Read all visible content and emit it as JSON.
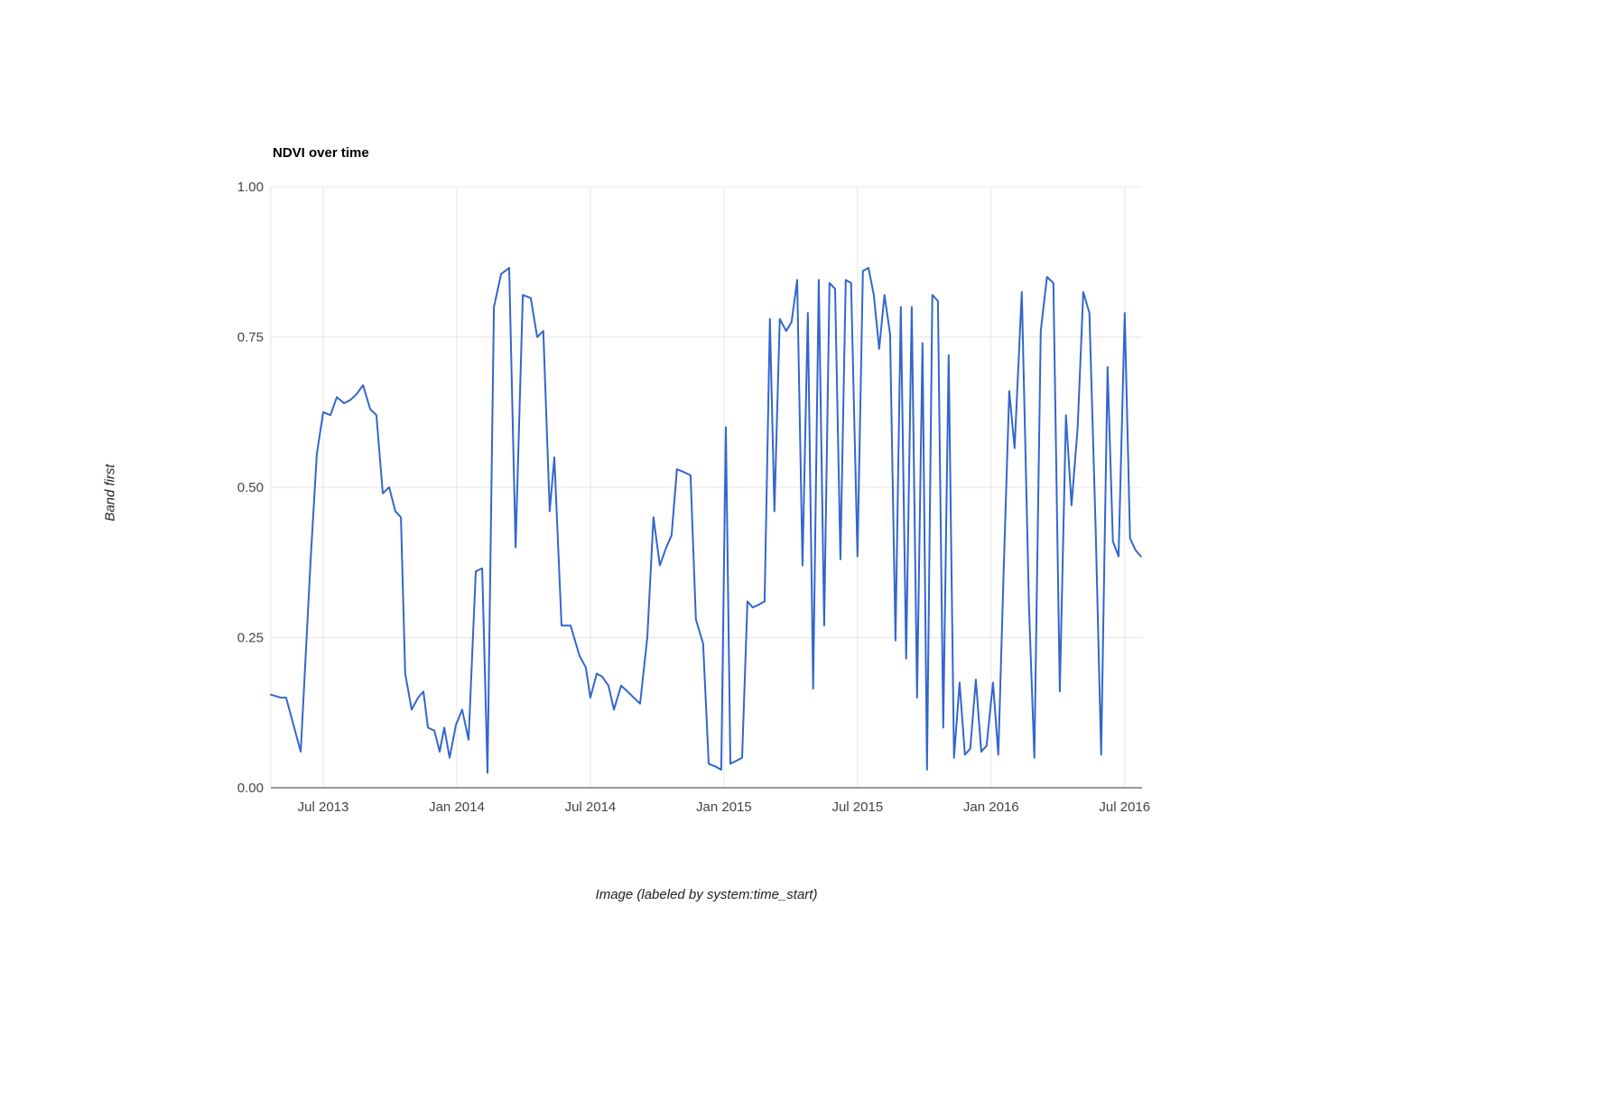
{
  "chart_data": {
    "type": "line",
    "title": "NDVI over time",
    "xlabel": "Image (labeled by system:time_start)",
    "ylabel": "Band first",
    "legend": "none",
    "grid": true,
    "line_color": "#3366cc",
    "grid_color": "#e6e6e6",
    "baseline_color": "#333333",
    "x_range": [
      2013.304,
      2016.565
    ],
    "y_range": [
      0,
      1
    ],
    "x_ticks": [
      {
        "v": 2013.5,
        "label": "Jul 2013"
      },
      {
        "v": 2014.0,
        "label": "Jan 2014"
      },
      {
        "v": 2014.5,
        "label": "Jul 2014"
      },
      {
        "v": 2015.0,
        "label": "Jan 2015"
      },
      {
        "v": 2015.5,
        "label": "Jul 2015"
      },
      {
        "v": 2016.0,
        "label": "Jan 2016"
      },
      {
        "v": 2016.5,
        "label": "Jul 2016"
      }
    ],
    "y_ticks": [
      {
        "v": 0.0,
        "label": "0.00"
      },
      {
        "v": 0.25,
        "label": "0.25"
      },
      {
        "v": 0.5,
        "label": "0.50"
      },
      {
        "v": 0.75,
        "label": "0.75"
      },
      {
        "v": 1.0,
        "label": "1.00"
      }
    ],
    "series": [
      {
        "name": "NDVI",
        "x": [
          2013.304,
          2013.341,
          2013.361,
          2013.416,
          2013.453,
          2013.476,
          2013.5,
          2013.527,
          2013.551,
          2013.578,
          2013.601,
          2013.625,
          2013.649,
          2013.676,
          2013.699,
          2013.723,
          2013.747,
          2013.77,
          2013.791,
          2013.807,
          2013.831,
          2013.855,
          2013.875,
          2013.892,
          2013.916,
          2013.936,
          2013.953,
          2013.973,
          2013.997,
          2014.02,
          2014.044,
          2014.071,
          2014.095,
          2014.115,
          2014.139,
          2014.166,
          2014.196,
          2014.22,
          2014.247,
          2014.277,
          2014.301,
          2014.324,
          2014.348,
          2014.365,
          2014.392,
          2014.426,
          2014.459,
          2014.483,
          2014.5,
          2014.524,
          2014.544,
          2014.568,
          2014.588,
          2014.615,
          2014.639,
          2014.662,
          2014.686,
          2014.713,
          2014.736,
          2014.76,
          2014.784,
          2014.804,
          2014.824,
          2014.851,
          2014.875,
          2014.895,
          2014.922,
          2014.943,
          2014.97,
          2014.99,
          2015.007,
          2015.024,
          2015.047,
          2015.068,
          2015.088,
          2015.108,
          2015.132,
          2015.152,
          2015.172,
          2015.189,
          2015.209,
          2015.233,
          2015.253,
          2015.274,
          2015.294,
          2015.314,
          2015.334,
          2015.355,
          2015.375,
          2015.395,
          2015.416,
          2015.436,
          2015.456,
          2015.476,
          2015.5,
          2015.52,
          2015.541,
          2015.561,
          2015.581,
          2015.601,
          2015.622,
          2015.642,
          2015.662,
          2015.682,
          2015.703,
          2015.723,
          2015.743,
          2015.76,
          2015.78,
          2015.801,
          2015.821,
          2015.841,
          2015.861,
          2015.882,
          2015.902,
          2015.922,
          2015.943,
          2015.963,
          2015.983,
          2016.007,
          2016.027,
          2016.047,
          2016.068,
          2016.088,
          2016.115,
          2016.142,
          2016.162,
          2016.186,
          2016.209,
          2016.233,
          2016.257,
          2016.28,
          2016.301,
          2016.324,
          2016.345,
          2016.368,
          2016.392,
          2016.412,
          2016.436,
          2016.456,
          2016.477,
          2016.5,
          2016.52,
          2016.541,
          2016.561
        ],
        "y": [
          0.155,
          0.15,
          0.15,
          0.06,
          0.38,
          0.555,
          0.625,
          0.62,
          0.65,
          0.64,
          0.645,
          0.655,
          0.67,
          0.63,
          0.62,
          0.49,
          0.5,
          0.46,
          0.45,
          0.19,
          0.13,
          0.15,
          0.16,
          0.1,
          0.095,
          0.06,
          0.1,
          0.05,
          0.105,
          0.13,
          0.08,
          0.36,
          0.365,
          0.025,
          0.8,
          0.855,
          0.865,
          0.4,
          0.82,
          0.815,
          0.75,
          0.76,
          0.46,
          0.55,
          0.27,
          0.27,
          0.22,
          0.2,
          0.15,
          0.19,
          0.185,
          0.17,
          0.13,
          0.17,
          0.16,
          0.15,
          0.14,
          0.25,
          0.45,
          0.37,
          0.4,
          0.42,
          0.53,
          0.525,
          0.52,
          0.28,
          0.24,
          0.04,
          0.035,
          0.03,
          0.6,
          0.04,
          0.045,
          0.05,
          0.31,
          0.3,
          0.305,
          0.31,
          0.78,
          0.46,
          0.78,
          0.76,
          0.775,
          0.845,
          0.37,
          0.79,
          0.165,
          0.845,
          0.27,
          0.84,
          0.83,
          0.38,
          0.845,
          0.84,
          0.385,
          0.86,
          0.865,
          0.82,
          0.73,
          0.82,
          0.755,
          0.245,
          0.8,
          0.215,
          0.8,
          0.15,
          0.74,
          0.03,
          0.82,
          0.81,
          0.1,
          0.72,
          0.05,
          0.175,
          0.055,
          0.065,
          0.18,
          0.06,
          0.07,
          0.175,
          0.055,
          0.36,
          0.66,
          0.565,
          0.825,
          0.3,
          0.05,
          0.76,
          0.85,
          0.84,
          0.16,
          0.62,
          0.47,
          0.6,
          0.825,
          0.79,
          0.42,
          0.055,
          0.7,
          0.41,
          0.385,
          0.79,
          0.415,
          0.395,
          0.385
        ]
      }
    ]
  }
}
